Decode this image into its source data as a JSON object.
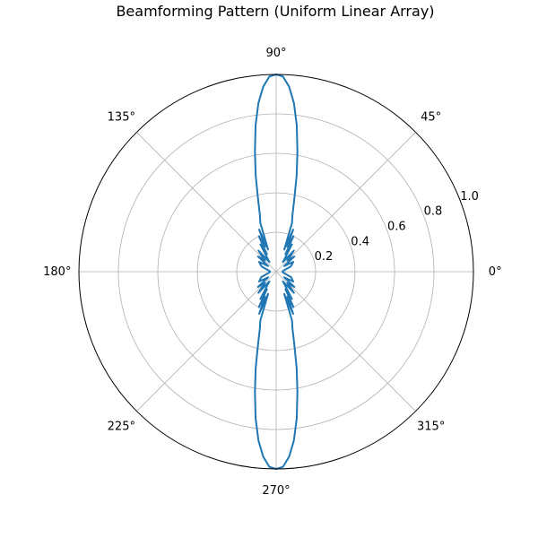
{
  "chart_data": {
    "type": "line",
    "projection": "polar",
    "title": "Beamforming Pattern (Uniform Linear Array)",
    "xlabel": "",
    "ylabel": "",
    "theta_ticks": [
      "0°",
      "45°",
      "90°",
      "135°",
      "180°",
      "225°",
      "270°",
      "315°"
    ],
    "r_ticks": [
      "0.2",
      "0.4",
      "0.6",
      "0.8",
      "1.0"
    ],
    "r_tick_values": [
      0.2,
      0.4,
      0.6,
      0.8,
      1.0
    ],
    "rlim": [
      0,
      1.0
    ],
    "grid": true,
    "legend": "none",
    "color": "#1f77b4",
    "series": [
      {
        "theta_deg": [
          0,
          10,
          20,
          30,
          35,
          40,
          45,
          50,
          55,
          60,
          62,
          64,
          66,
          68,
          70,
          72,
          74,
          76,
          78,
          80,
          82,
          84,
          86,
          88,
          90,
          92,
          94,
          96,
          98,
          100,
          102,
          104,
          106,
          108,
          110,
          112,
          114,
          116,
          118,
          120,
          125,
          130,
          135,
          140,
          145,
          150,
          160,
          170,
          180,
          190,
          200,
          210,
          215,
          220,
          225,
          230,
          235,
          240,
          242,
          244,
          246,
          248,
          250,
          252,
          254,
          256,
          258,
          260,
          262,
          264,
          266,
          268,
          270,
          272,
          274,
          276,
          278,
          280,
          282,
          284,
          286,
          288,
          290,
          292,
          294,
          296,
          298,
          300,
          305,
          310,
          315,
          320,
          325,
          330,
          340,
          350,
          360
        ],
        "r": [
          0.03,
          0.04,
          0.08,
          0.1,
          0.05,
          0.12,
          0.08,
          0.14,
          0.06,
          0.16,
          0.1,
          0.2,
          0.14,
          0.23,
          0.12,
          0.26,
          0.3,
          0.38,
          0.5,
          0.62,
          0.75,
          0.86,
          0.94,
          0.99,
          1.0,
          0.99,
          0.94,
          0.86,
          0.75,
          0.62,
          0.5,
          0.38,
          0.3,
          0.26,
          0.12,
          0.23,
          0.14,
          0.2,
          0.1,
          0.16,
          0.06,
          0.14,
          0.08,
          0.12,
          0.05,
          0.1,
          0.08,
          0.04,
          0.03,
          0.04,
          0.08,
          0.1,
          0.05,
          0.12,
          0.08,
          0.14,
          0.06,
          0.16,
          0.1,
          0.2,
          0.14,
          0.23,
          0.12,
          0.26,
          0.3,
          0.38,
          0.5,
          0.62,
          0.75,
          0.86,
          0.94,
          0.99,
          1.0,
          0.99,
          0.94,
          0.86,
          0.75,
          0.62,
          0.5,
          0.38,
          0.3,
          0.26,
          0.12,
          0.23,
          0.14,
          0.2,
          0.1,
          0.16,
          0.06,
          0.14,
          0.08,
          0.12,
          0.05,
          0.1,
          0.08,
          0.04,
          0.03
        ]
      }
    ]
  }
}
